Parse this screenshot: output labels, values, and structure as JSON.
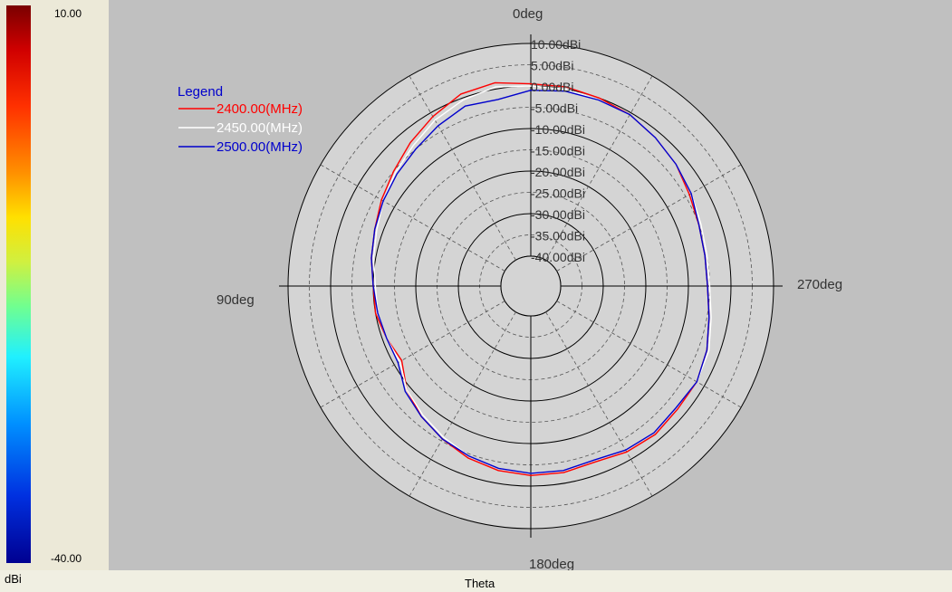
{
  "colorbar": {
    "max_label": "10.00",
    "min_label": "-40.00",
    "unit": "dBi"
  },
  "xlabel": "Theta",
  "colors": {
    "plot_bg": "#c0c0c0",
    "series_2400": "#ff0000",
    "series_2450": "#ffffff",
    "series_2500": "#0000cc"
  },
  "chart_data": {
    "type": "polar",
    "radial_unit": "dBi",
    "radial_range": [
      -40,
      10
    ],
    "radial_ticks": [
      10,
      5,
      0,
      -5,
      -10,
      -15,
      -20,
      -25,
      -30,
      -35,
      -40
    ],
    "radial_tick_labels": [
      "10.00dBi",
      "5.00dBi",
      "0.00dBi",
      "-5.00dBi",
      "-10.00dBi",
      "-15.00dBi",
      "-20.00dBi",
      "-25.00dBi",
      "-30.00dBi",
      "-35.00dBi",
      "-40.00dBi"
    ],
    "angle_labels": [
      {
        "deg": 0,
        "label": "0deg"
      },
      {
        "deg": 90,
        "label": "90deg"
      },
      {
        "deg": 180,
        "label": "180deg"
      },
      {
        "deg": 270,
        "label": "270deg"
      }
    ],
    "angle_direction": "counterclockwise",
    "legend": {
      "title": "Legend",
      "position": "top-left"
    },
    "angles_deg": [
      0,
      10,
      20,
      30,
      40,
      50,
      60,
      70,
      80,
      90,
      100,
      110,
      120,
      130,
      140,
      150,
      160,
      170,
      180,
      190,
      200,
      210,
      220,
      230,
      240,
      250,
      260,
      270,
      280,
      290,
      300,
      310,
      320,
      330,
      340,
      350
    ],
    "series": [
      {
        "name": "2400.00(MHz)",
        "values": [
          0.5,
          1.5,
          1.0,
          -1.0,
          -3.0,
          -5.0,
          -6.5,
          -8.0,
          -9.0,
          -10.0,
          -10.0,
          -11.0,
          -12.0,
          -9.0,
          -7.0,
          -5.5,
          -4.0,
          -3.0,
          -2.5,
          -2.5,
          -3.0,
          -2.0,
          -1.5,
          -2.0,
          -2.0,
          -3.0,
          -4.5,
          -5.5,
          -5.5,
          -5.0,
          -4.0,
          -2.5,
          -1.5,
          -0.5,
          0.0,
          0.5
        ]
      },
      {
        "name": "2450.00(MHz)",
        "values": [
          0.0,
          0.5,
          -0.5,
          -2.0,
          -4.0,
          -5.5,
          -7.0,
          -8.5,
          -9.5,
          -10.5,
          -10.5,
          -11.0,
          -11.5,
          -9.0,
          -7.5,
          -6.0,
          -4.5,
          -3.5,
          -3.0,
          -3.0,
          -3.5,
          -2.5,
          -2.0,
          -2.5,
          -2.0,
          -2.5,
          -4.0,
          -5.0,
          -5.0,
          -4.5,
          -3.5,
          -2.5,
          -1.5,
          -0.5,
          -0.5,
          0.0
        ]
      },
      {
        "name": "2500.00(MHz)",
        "values": [
          -1.0,
          -2.5,
          -2.0,
          -3.5,
          -5.0,
          -6.0,
          -7.0,
          -8.0,
          -9.0,
          -10.0,
          -10.5,
          -11.0,
          -11.0,
          -8.5,
          -7.0,
          -5.5,
          -4.5,
          -3.5,
          -3.0,
          -3.0,
          -3.5,
          -2.5,
          -2.0,
          -2.5,
          -2.0,
          -3.0,
          -4.5,
          -5.5,
          -5.5,
          -5.0,
          -3.5,
          -2.5,
          -1.5,
          -0.5,
          -0.5,
          -0.5
        ]
      }
    ]
  }
}
